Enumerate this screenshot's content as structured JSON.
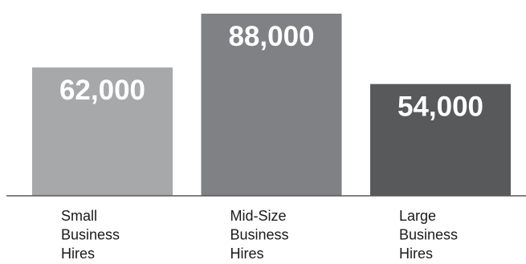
{
  "chart_data": {
    "type": "bar",
    "categories": [
      "Small Business Hires",
      "Mid-Size Business Hires",
      "Large Business Hires"
    ],
    "category_lines": [
      [
        "Small",
        "Business",
        "Hires"
      ],
      [
        "Mid-Size",
        "Business",
        "Hires"
      ],
      [
        "Large",
        "Business",
        "Hires"
      ]
    ],
    "values": [
      62000,
      88000,
      54000
    ],
    "value_labels": [
      "62,000",
      "88,000",
      "54,000"
    ],
    "bar_colors": [
      "#a7a8aa",
      "#808184",
      "#58595b"
    ],
    "axis_color": "#58595b",
    "title": "",
    "xlabel": "",
    "ylabel": "",
    "ylim": [
      0,
      91500
    ],
    "grid": false,
    "legend": "none"
  }
}
